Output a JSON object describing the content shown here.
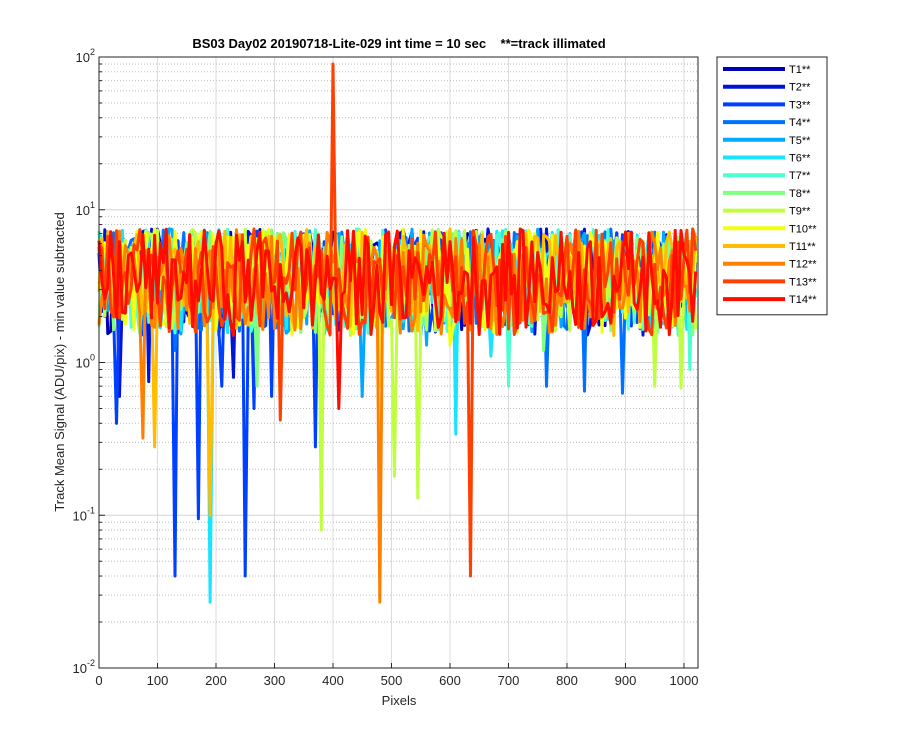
{
  "chart_data": {
    "type": "line",
    "title": "BS03 Day02 20190718-Lite-029 int time = 10 sec    **=track illimated",
    "xlabel": "Pixels",
    "ylabel": "Track Mean Signal (ADU/pix) - min value subtracted",
    "yscale": "log",
    "xlim": [
      0,
      1024
    ],
    "ylim": [
      0.01,
      100
    ],
    "grid": true,
    "legend_position": "outside-right",
    "x_ticks": [
      0,
      100,
      200,
      300,
      400,
      500,
      600,
      700,
      800,
      900,
      1000
    ],
    "x_tick_labels": [
      "0",
      "100",
      "200",
      "300",
      "400",
      "500",
      "600",
      "700",
      "800",
      "900",
      "1000"
    ],
    "y_ticks": [
      {
        "value": 0.01,
        "base": "10",
        "exp": "-2"
      },
      {
        "value": 0.1,
        "base": "10",
        "exp": "-1"
      },
      {
        "value": 1,
        "base": "10",
        "exp": "0"
      },
      {
        "value": 10,
        "base": "10",
        "exp": "1"
      },
      {
        "value": 100,
        "base": "10",
        "exp": "2"
      }
    ],
    "band_low": 1.5,
    "band_high": 7.5,
    "series": [
      {
        "name": "T1**",
        "color": "#0000b4",
        "dips": [
          [
            20,
            1.6
          ]
        ]
      },
      {
        "name": "T2**",
        "color": "#0014d8",
        "dips": [
          [
            35,
            0.6
          ],
          [
            85,
            0.75
          ],
          [
            230,
            0.8
          ]
        ]
      },
      {
        "name": "T3**",
        "color": "#0040ff",
        "dips": [
          [
            32,
            0.4
          ],
          [
            128,
            0.04
          ],
          [
            170,
            0.095
          ],
          [
            210,
            0.7
          ],
          [
            252,
            0.04
          ],
          [
            265,
            0.5
          ],
          [
            296,
            0.6
          ],
          [
            370,
            0.28
          ]
        ]
      },
      {
        "name": "T4**",
        "color": "#0072ff",
        "dips": [
          [
            10,
            2.0
          ],
          [
            130,
            1.2
          ],
          [
            560,
            1.5
          ],
          [
            765,
            0.7
          ],
          [
            830,
            0.65
          ],
          [
            893,
            0.63
          ]
        ]
      },
      {
        "name": "T5**",
        "color": "#00a8ff",
        "dips": [
          [
            15,
            2.2
          ],
          [
            450,
            0.6
          ],
          [
            560,
            1.3
          ]
        ]
      },
      {
        "name": "T6**",
        "color": "#18e4ff",
        "dips": [
          [
            190,
            0.027
          ],
          [
            608,
            0.34
          ],
          [
            670,
            1.1
          ]
        ]
      },
      {
        "name": "T7**",
        "color": "#4cffd0",
        "dips": [
          [
            700,
            0.7
          ],
          [
            1010,
            0.9
          ]
        ]
      },
      {
        "name": "T8**",
        "color": "#80ff80",
        "dips": [
          [
            270,
            0.7
          ],
          [
            760,
            1.2
          ]
        ]
      },
      {
        "name": "T9**",
        "color": "#c0ff40",
        "dips": [
          [
            380,
            0.08
          ],
          [
            505,
            0.18
          ],
          [
            545,
            0.13
          ],
          [
            950,
            0.7
          ],
          [
            995,
            0.68
          ]
        ]
      },
      {
        "name": "T10**",
        "color": "#f4ff10",
        "dips": [
          [
            480,
            0.7
          ],
          [
            600,
            1.3
          ]
        ]
      },
      {
        "name": "T11**",
        "color": "#ffbc00",
        "dips": [
          [
            95,
            0.28
          ],
          [
            190,
            0.1
          ]
        ]
      },
      {
        "name": "T12**",
        "color": "#ff8000",
        "dips": [
          [
            73,
            0.32
          ],
          [
            478,
            0.027
          ]
        ]
      },
      {
        "name": "T13**",
        "color": "#ff4000",
        "dips": [
          [
            637,
            0.04
          ],
          [
            310,
            0.42
          ]
        ],
        "spike": [
          400,
          90
        ]
      },
      {
        "name": "T14**",
        "color": "#ff0c00",
        "dips": [
          [
            410,
            0.5
          ]
        ]
      }
    ]
  }
}
